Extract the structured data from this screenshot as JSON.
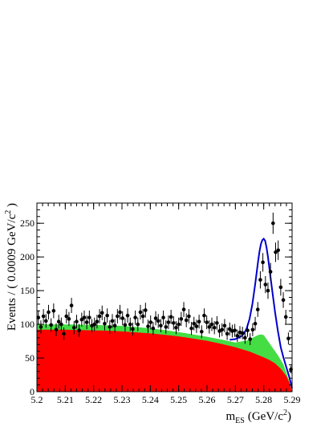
{
  "chart_data": {
    "type": "line",
    "title": "",
    "xlabel_main": "m",
    "xlabel_sub": "ES",
    "xlabel_unit_pre": "(GeV/c",
    "xlabel_unit_sup": "2",
    "xlabel_unit_post": ")",
    "ylabel_pre": "Events / ( 0.0009 GeV/c",
    "ylabel_sup": "2",
    "ylabel_post": " )",
    "xlim": [
      5.2,
      5.29
    ],
    "ylim": [
      0,
      280
    ],
    "x_ticks": [
      5.2,
      5.21,
      5.22,
      5.23,
      5.24,
      5.25,
      5.26,
      5.27,
      5.28,
      5.29
    ],
    "x_tick_labels": [
      "5.2",
      "5.21",
      "5.22",
      "5.23",
      "5.24",
      "5.25",
      "5.26",
      "5.27",
      "5.28",
      "5.29"
    ],
    "y_ticks": [
      0,
      50,
      100,
      150,
      200,
      250
    ],
    "y_tick_labels": [
      "0",
      "50",
      "100",
      "150",
      "200",
      "250"
    ],
    "colors": {
      "combinatorial_background": "#ff0000",
      "peaking_background": "#44dd44",
      "total_fit": "#0000cc",
      "data_points": "#000000"
    },
    "series": [
      {
        "kind": "area",
        "color_key": "combinatorial_background",
        "x": [
          5.2,
          5.205,
          5.21,
          5.215,
          5.22,
          5.225,
          5.23,
          5.235,
          5.24,
          5.245,
          5.25,
          5.255,
          5.26,
          5.265,
          5.27,
          5.275,
          5.28,
          5.282,
          5.284,
          5.286,
          5.288,
          5.289,
          5.29
        ],
        "y": [
          92,
          92,
          92,
          91.5,
          91,
          90.5,
          89.5,
          88,
          86.5,
          84.5,
          82,
          79,
          75.5,
          71,
          66,
          59.5,
          51,
          47,
          42,
          34,
          23,
          14,
          0
        ]
      },
      {
        "kind": "area",
        "color_key": "peaking_background",
        "x": [
          5.2,
          5.205,
          5.21,
          5.215,
          5.22,
          5.225,
          5.23,
          5.235,
          5.24,
          5.245,
          5.25,
          5.255,
          5.26,
          5.265,
          5.27,
          5.274,
          5.276,
          5.278,
          5.279,
          5.28,
          5.281,
          5.283,
          5.285,
          5.287,
          5.288,
          5.289,
          5.29
        ],
        "y": [
          100,
          100,
          100,
          99.5,
          99,
          98.5,
          97.5,
          96,
          94,
          91.5,
          88.5,
          85,
          81.5,
          77.5,
          73,
          76,
          80,
          84,
          85,
          84,
          78,
          66,
          54,
          40,
          28,
          16,
          0
        ]
      },
      {
        "kind": "line",
        "color_key": "total_fit",
        "x": [
          5.268,
          5.27,
          5.272,
          5.273,
          5.274,
          5.275,
          5.276,
          5.277,
          5.278,
          5.2785,
          5.279,
          5.2795,
          5.28,
          5.2805,
          5.281,
          5.2815,
          5.282,
          5.283,
          5.284,
          5.285,
          5.286,
          5.287,
          5.288,
          5.289,
          5.29
        ],
        "y": [
          77,
          78,
          82,
          86,
          94,
          108,
          130,
          160,
          193,
          208,
          219,
          225,
          227,
          224,
          214,
          200,
          183,
          150,
          118,
          90,
          66,
          50,
          36,
          22,
          5
        ]
      },
      {
        "kind": "scatter",
        "color_key": "data_points",
        "x": [
          5.2005,
          5.2014,
          5.2023,
          5.2032,
          5.2041,
          5.205,
          5.2059,
          5.2068,
          5.2077,
          5.2086,
          5.2095,
          5.2104,
          5.2113,
          5.2122,
          5.2131,
          5.214,
          5.2149,
          5.2158,
          5.2167,
          5.2176,
          5.2185,
          5.2194,
          5.2203,
          5.2212,
          5.2221,
          5.223,
          5.2239,
          5.2248,
          5.2257,
          5.2266,
          5.2275,
          5.2284,
          5.2293,
          5.2302,
          5.2311,
          5.232,
          5.2329,
          5.2338,
          5.2347,
          5.2356,
          5.2365,
          5.2374,
          5.2383,
          5.2392,
          5.2401,
          5.241,
          5.2419,
          5.2428,
          5.2437,
          5.2446,
          5.2455,
          5.2464,
          5.2473,
          5.2482,
          5.2491,
          5.25,
          5.2509,
          5.2518,
          5.2527,
          5.2536,
          5.2545,
          5.2554,
          5.2563,
          5.2572,
          5.2581,
          5.259,
          5.2599,
          5.2608,
          5.2617,
          5.2626,
          5.2635,
          5.2644,
          5.2653,
          5.2662,
          5.2671,
          5.268,
          5.2689,
          5.2698,
          5.2707,
          5.2716,
          5.2725,
          5.2734,
          5.2743,
          5.2752,
          5.2761,
          5.277,
          5.2779,
          5.2788,
          5.2797,
          5.2806,
          5.2815,
          5.2824,
          5.2833,
          5.2842,
          5.2851,
          5.286,
          5.2869,
          5.2878,
          5.2887,
          5.2896
        ],
        "y": [
          110,
          96,
          112,
          105,
          118,
          99,
          120,
          92,
          104,
          100,
          86,
          112,
          108,
          128,
          95,
          104,
          91,
          107,
          110,
          103,
          110,
          98,
          100,
          104,
          112,
          117,
          101,
          113,
          96,
          105,
          98,
          112,
          118,
          109,
          99,
          113,
          100,
          93,
          110,
          100,
          118,
          112,
          121,
          97,
          103,
          94,
          109,
          105,
          98,
          110,
          96,
          103,
          111,
          102,
          95,
          100,
          108,
          122,
          106,
          112,
          94,
          101,
          97,
          104,
          89,
          113,
          103,
          96,
          100,
          95,
          102,
          90,
          92,
          98,
          86,
          93,
          90,
          91,
          83,
          88,
          87,
          80,
          91,
          78,
          92,
          101,
          122,
          166,
          192,
          159,
          150,
          178,
          250,
          207,
          210,
          155,
          136,
          111,
          79,
          33
        ]
      }
    ]
  }
}
